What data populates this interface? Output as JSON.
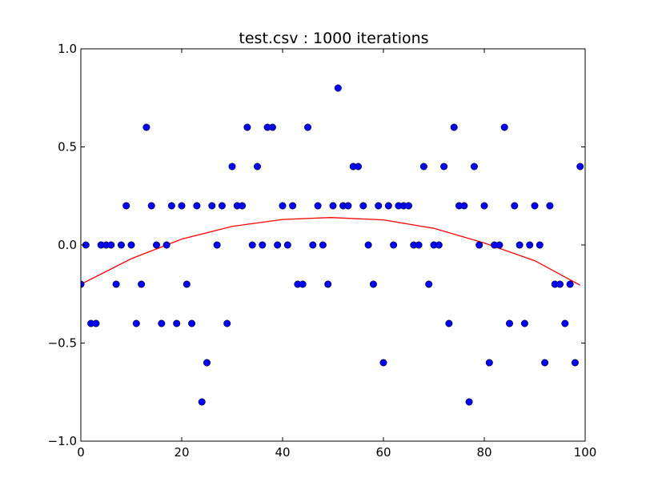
{
  "chart_data": {
    "type": "scatter",
    "title": "test.csv : 1000 iterations",
    "xlabel": "",
    "ylabel": "",
    "xlim": [
      0,
      100
    ],
    "ylim": [
      -1.0,
      1.0
    ],
    "grid": false,
    "legend": "none",
    "x_ticks": [
      0,
      20,
      40,
      60,
      80,
      100
    ],
    "x_tick_labels": [
      "0",
      "20",
      "40",
      "60",
      "80",
      "100"
    ],
    "y_ticks": [
      -1.0,
      -0.5,
      0.0,
      0.5,
      1.0
    ],
    "y_tick_labels": [
      "−1.0",
      "−0.5",
      "0.0",
      "0.5",
      "1.0"
    ],
    "colors": {
      "points": "#0000ff",
      "curve": "#ff0000"
    },
    "series": [
      {
        "kind": "scatter",
        "x": [
          0,
          1,
          2,
          3,
          4,
          5,
          6,
          7,
          8,
          9,
          10,
          11,
          12,
          13,
          14,
          15,
          16,
          17,
          18,
          19,
          20,
          21,
          22,
          23,
          24,
          25,
          26,
          27,
          28,
          29,
          30,
          31,
          32,
          33,
          34,
          35,
          36,
          37,
          38,
          39,
          40,
          41,
          42,
          43,
          44,
          45,
          46,
          47,
          48,
          49,
          50,
          51,
          52,
          53,
          54,
          55,
          56,
          57,
          58,
          59,
          60,
          61,
          62,
          63,
          64,
          65,
          66,
          67,
          68,
          69,
          70,
          71,
          72,
          73,
          74,
          75,
          76,
          77,
          78,
          79,
          80,
          81,
          82,
          83,
          84,
          85,
          86,
          87,
          88,
          89,
          90,
          91,
          92,
          93,
          94,
          95,
          96,
          97,
          98,
          99
        ],
        "y": [
          -0.2,
          0.0,
          -0.4,
          -0.4,
          0.0,
          0.0,
          0.0,
          -0.2,
          0.0,
          0.2,
          0.0,
          -0.4,
          -0.2,
          0.6,
          0.2,
          0.0,
          -0.4,
          0.0,
          0.2,
          -0.4,
          0.2,
          -0.2,
          -0.4,
          0.2,
          -0.8,
          -0.6,
          0.2,
          0.0,
          0.2,
          -0.4,
          0.4,
          0.2,
          0.2,
          0.6,
          0.0,
          0.4,
          0.0,
          0.6,
          0.6,
          0.0,
          0.2,
          0.0,
          0.2,
          -0.2,
          -0.2,
          0.6,
          0.0,
          0.2,
          0.0,
          -0.2,
          0.2,
          0.8,
          0.2,
          0.2,
          0.4,
          0.4,
          0.2,
          0.0,
          -0.2,
          0.2,
          -0.6,
          0.2,
          0.0,
          0.2,
          0.2,
          0.2,
          0.0,
          0.0,
          0.4,
          -0.2,
          0.0,
          0.0,
          0.4,
          -0.4,
          0.6,
          0.2,
          0.2,
          -0.8,
          0.4,
          0.0,
          0.2,
          -0.6,
          0.0,
          0.0,
          0.6,
          -0.4,
          0.2,
          0.0,
          -0.4,
          0.0,
          0.2,
          0.0,
          -0.6,
          0.2,
          -0.2,
          -0.2,
          -0.4,
          -0.2,
          -0.6,
          0.4
        ]
      },
      {
        "kind": "line",
        "x": [
          0,
          10,
          20,
          30,
          40,
          49.5,
          60,
          70,
          80,
          90,
          99
        ],
        "y": [
          -0.2,
          -0.07,
          0.03,
          0.095,
          0.13,
          0.14,
          0.128,
          0.085,
          0.01,
          -0.08,
          -0.205
        ]
      }
    ]
  }
}
